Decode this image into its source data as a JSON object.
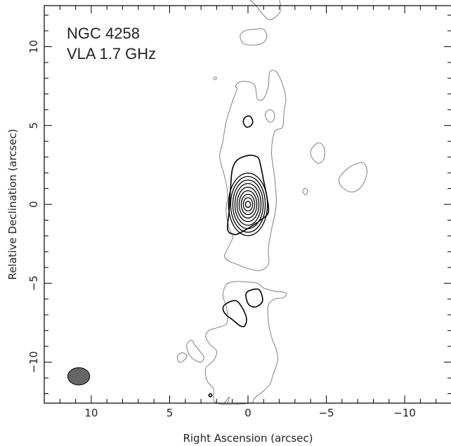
{
  "chart_data": {
    "type": "contour",
    "title_lines": [
      "NGC 4258",
      "VLA 1.7 GHz"
    ],
    "xlabel": "Right Ascension  (arcsec)",
    "ylabel": "Relative Declination  (arcsec)",
    "xlim": [
      13,
      -13
    ],
    "ylim": [
      -12.6,
      12.6
    ],
    "x_major_ticks": [
      10,
      5,
      0,
      -5,
      -10
    ],
    "x_tick_labels": [
      "10",
      "5",
      "0",
      "−5",
      "−10"
    ],
    "y_major_ticks": [
      -10,
      -5,
      0,
      5,
      10
    ],
    "y_tick_labels": [
      "−10",
      "−5",
      "0",
      "5",
      "10"
    ],
    "minor_tick_step": 1,
    "colors": {
      "frame": "#000000",
      "low_contours": "#808080",
      "high_contours": "#000000",
      "beam": "#666666"
    },
    "beam": {
      "x": 10.8,
      "y": -10.9,
      "major_axis": 1.4,
      "minor_axis": 1.1
    },
    "core": {
      "x": 0.0,
      "y": 0.0,
      "num_levels": 9
    },
    "contours": [
      {
        "level": "low",
        "points": [
          [
            1.2,
            -1.5
          ],
          [
            1.4,
            -0.5
          ],
          [
            1.3,
            0.7
          ],
          [
            1.5,
            1.8
          ],
          [
            1.8,
            3.0
          ],
          [
            1.6,
            4.0
          ],
          [
            1.4,
            5.2
          ],
          [
            1.0,
            6.5
          ],
          [
            0.7,
            7.3
          ],
          [
            0.8,
            7.5
          ],
          [
            0.4,
            7.8
          ],
          [
            -0.4,
            7.6
          ],
          [
            -0.6,
            6.7
          ],
          [
            -1.0,
            6.7
          ],
          [
            -1.3,
            7.5
          ],
          [
            -1.4,
            8.4
          ],
          [
            -1.9,
            8.3
          ],
          [
            -2.4,
            6.9
          ],
          [
            -2.3,
            5.9
          ],
          [
            -2.2,
            4.9
          ],
          [
            -1.7,
            4.6
          ],
          [
            -1.5,
            3.3
          ],
          [
            -1.7,
            1.7
          ],
          [
            -1.8,
            0.0
          ],
          [
            -1.5,
            -1.6
          ],
          [
            -1.3,
            -2.8
          ],
          [
            -1.3,
            -3.8
          ],
          [
            -0.7,
            -4.2
          ],
          [
            0.2,
            -4.0
          ],
          [
            0.7,
            -3.8
          ],
          [
            1.2,
            -3.6
          ],
          [
            1.5,
            -3.3
          ],
          [
            1.3,
            -2.8
          ],
          [
            1.0,
            -2.2
          ],
          [
            1.0,
            -1.9
          ],
          [
            1.2,
            -1.5
          ]
        ]
      },
      {
        "level": "low",
        "points": [
          [
            -1.1,
            5.7
          ],
          [
            -1.2,
            5.9
          ],
          [
            -1.4,
            6.0
          ],
          [
            -1.6,
            5.9
          ],
          [
            -1.7,
            5.6
          ],
          [
            -1.6,
            5.3
          ],
          [
            -1.4,
            5.2
          ],
          [
            -1.2,
            5.4
          ],
          [
            -1.1,
            5.7
          ]
        ]
      },
      {
        "level": "low",
        "points": [
          [
            -0.1,
            13.0
          ],
          [
            -0.5,
            12.6
          ],
          [
            -1.0,
            12.0
          ],
          [
            -1.4,
            11.7
          ],
          [
            -1.9,
            12.0
          ],
          [
            -2.1,
            12.4
          ],
          [
            -2.0,
            13.0
          ]
        ]
      },
      {
        "level": "low",
        "points": [
          [
            0.5,
            10.7
          ],
          [
            0.3,
            10.2
          ],
          [
            -0.3,
            10.1
          ],
          [
            -0.9,
            10.2
          ],
          [
            -1.2,
            10.6
          ],
          [
            -1.0,
            11.1
          ],
          [
            -0.4,
            11.1
          ],
          [
            0.2,
            11.0
          ],
          [
            0.5,
            10.7
          ]
        ]
      },
      {
        "level": "low",
        "points": [
          [
            -4.1,
            3.6
          ],
          [
            -4.5,
            3.9
          ],
          [
            -4.8,
            3.7
          ],
          [
            -4.9,
            3.2
          ],
          [
            -4.8,
            2.8
          ],
          [
            -4.5,
            2.6
          ],
          [
            -4.2,
            2.8
          ],
          [
            -4.0,
            3.2
          ],
          [
            -4.1,
            3.6
          ]
        ]
      },
      {
        "level": "low",
        "points": [
          [
            -5.9,
            1.8
          ],
          [
            -6.4,
            2.3
          ],
          [
            -7.0,
            2.6
          ],
          [
            -7.4,
            2.6
          ],
          [
            -7.6,
            2.1
          ],
          [
            -7.4,
            1.4
          ],
          [
            -7.0,
            0.9
          ],
          [
            -6.5,
            0.8
          ],
          [
            -6.0,
            1.1
          ],
          [
            -5.8,
            1.5
          ],
          [
            -5.9,
            1.8
          ]
        ]
      },
      {
        "level": "low",
        "points": [
          [
            1.4,
            -5.1
          ],
          [
            0.9,
            -4.9
          ],
          [
            0.3,
            -4.9
          ],
          [
            -0.6,
            -5.0
          ],
          [
            -1.0,
            -5.3
          ],
          [
            -1.7,
            -5.5
          ],
          [
            -2.4,
            -5.6
          ],
          [
            -2.3,
            -5.9
          ],
          [
            -1.7,
            -6.0
          ],
          [
            -1.3,
            -6.4
          ],
          [
            -1.3,
            -7.4
          ],
          [
            -1.5,
            -8.4
          ],
          [
            -1.8,
            -9.2
          ],
          [
            -1.9,
            -9.9
          ],
          [
            -1.6,
            -10.8
          ],
          [
            -1.4,
            -11.4
          ],
          [
            -0.9,
            -11.9
          ],
          [
            -0.4,
            -12.3
          ],
          [
            -0.1,
            -12.6
          ],
          [
            2.0,
            -12.6
          ],
          [
            2.2,
            -11.7
          ],
          [
            2.6,
            -11.2
          ],
          [
            2.7,
            -10.4
          ],
          [
            2.2,
            -9.9
          ],
          [
            2.0,
            -9.3
          ],
          [
            2.4,
            -8.9
          ],
          [
            2.7,
            -8.4
          ],
          [
            2.5,
            -8.0
          ],
          [
            1.9,
            -7.8
          ],
          [
            1.4,
            -7.6
          ],
          [
            1.3,
            -7.1
          ],
          [
            1.4,
            -6.4
          ],
          [
            1.6,
            -5.8
          ],
          [
            1.4,
            -5.1
          ]
        ]
      },
      {
        "level": "low",
        "points": [
          [
            3.6,
            -8.6
          ],
          [
            3.4,
            -8.9
          ],
          [
            3.0,
            -9.4
          ],
          [
            2.8,
            -9.7
          ],
          [
            3.0,
            -10.0
          ],
          [
            3.5,
            -9.8
          ],
          [
            3.8,
            -9.4
          ],
          [
            3.9,
            -8.9
          ],
          [
            3.6,
            -8.6
          ]
        ]
      },
      {
        "level": "low",
        "points": [
          [
            3.9,
            -9.6
          ],
          [
            4.2,
            -9.4
          ],
          [
            4.5,
            -9.6
          ],
          [
            4.4,
            -10.0
          ],
          [
            4.1,
            -9.9
          ],
          [
            3.9,
            -9.6
          ]
        ]
      },
      {
        "level": "low",
        "points": [
          [
            1.5,
            -12.6
          ],
          [
            1.2,
            -12.2
          ],
          [
            1.3,
            -12.6
          ]
        ]
      },
      {
        "level": "low",
        "points": [
          [
            2.2,
            8.0
          ],
          [
            2.1,
            8.1
          ],
          [
            2.0,
            8.0
          ],
          [
            2.1,
            7.9
          ],
          [
            2.2,
            8.0
          ]
        ]
      },
      {
        "level": "low",
        "points": [
          [
            -3.5,
            0.8
          ],
          [
            -3.6,
            1.0
          ],
          [
            -3.8,
            0.9
          ],
          [
            -3.7,
            0.6
          ],
          [
            -3.5,
            0.8
          ]
        ]
      },
      {
        "level": "high",
        "points": [
          [
            1.3,
            -1.6
          ],
          [
            1.2,
            -0.4
          ],
          [
            1.1,
            1.2
          ],
          [
            1.0,
            2.2
          ],
          [
            0.7,
            2.8
          ],
          [
            0.0,
            3.1
          ],
          [
            -0.6,
            3.0
          ],
          [
            -0.8,
            2.5
          ],
          [
            -1.0,
            1.5
          ],
          [
            -1.2,
            0.5
          ],
          [
            -1.3,
            -0.5
          ],
          [
            -0.8,
            -1.0
          ],
          [
            -0.2,
            -1.4
          ],
          [
            0.5,
            -1.8
          ],
          [
            0.9,
            -1.9
          ],
          [
            1.3,
            -1.6
          ]
        ]
      },
      {
        "level": "high",
        "points": [
          [
            0.3,
            5.2
          ],
          [
            0.2,
            5.5
          ],
          [
            -0.1,
            5.6
          ],
          [
            -0.3,
            5.3
          ],
          [
            -0.2,
            5.0
          ],
          [
            0.1,
            4.9
          ],
          [
            0.3,
            5.2
          ]
        ]
      },
      {
        "level": "high",
        "points": [
          [
            0.1,
            -5.6
          ],
          [
            -0.3,
            -5.4
          ],
          [
            -0.7,
            -5.4
          ],
          [
            -0.9,
            -5.8
          ],
          [
            -0.9,
            -6.2
          ],
          [
            -0.5,
            -6.5
          ],
          [
            -0.1,
            -6.4
          ],
          [
            0.1,
            -6.0
          ],
          [
            0.1,
            -5.6
          ]
        ]
      },
      {
        "level": "high",
        "points": [
          [
            1.4,
            -6.3
          ],
          [
            0.8,
            -6.1
          ],
          [
            0.4,
            -6.5
          ],
          [
            0.1,
            -7.2
          ],
          [
            0.2,
            -7.7
          ],
          [
            0.5,
            -7.7
          ],
          [
            1.0,
            -7.3
          ],
          [
            1.4,
            -7.0
          ],
          [
            1.6,
            -6.6
          ],
          [
            1.4,
            -6.3
          ]
        ]
      },
      {
        "level": "high",
        "points": [
          [
            2.5,
            -12.1
          ],
          [
            2.4,
            -12.2
          ],
          [
            2.3,
            -12.1
          ],
          [
            2.4,
            -12.0
          ],
          [
            2.5,
            -12.1
          ]
        ]
      }
    ]
  }
}
